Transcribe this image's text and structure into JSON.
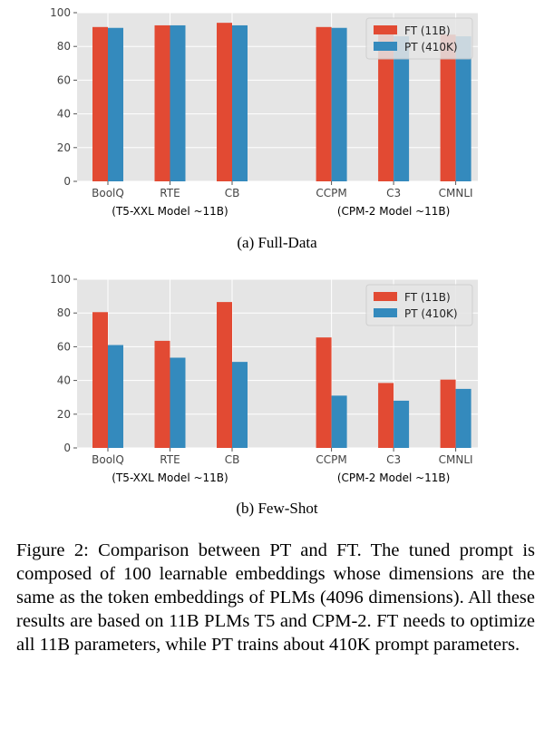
{
  "chart_data": [
    {
      "type": "bar",
      "id": "full-data",
      "caption": "(a) Full-Data",
      "categories": [
        "BoolQ",
        "RTE",
        "CB",
        "CCPM",
        "C3",
        "CMNLI"
      ],
      "groups": [
        {
          "label": "(T5-XXL Model ~11B)",
          "categories": [
            "BoolQ",
            "RTE",
            "CB"
          ]
        },
        {
          "label": "(CPM-2 Model ~11B)",
          "categories": [
            "CCPM",
            "C3",
            "CMNLI"
          ]
        }
      ],
      "series": [
        {
          "name": "FT (11B)",
          "color": "#e24a33",
          "values": [
            91.5,
            92.5,
            94,
            91.5,
            89,
            87
          ]
        },
        {
          "name": "PT (410K)",
          "color": "#348abd",
          "values": [
            91,
            92.5,
            92.5,
            91,
            86,
            86
          ]
        }
      ],
      "yticks": [
        0,
        20,
        40,
        60,
        80,
        100
      ],
      "ylim": [
        0,
        100
      ],
      "grid": true,
      "legend": "top-right"
    },
    {
      "type": "bar",
      "id": "few-shot",
      "caption": "(b) Few-Shot",
      "categories": [
        "BoolQ",
        "RTE",
        "CB",
        "CCPM",
        "C3",
        "CMNLI"
      ],
      "groups": [
        {
          "label": "(T5-XXL Model ~11B)",
          "categories": [
            "BoolQ",
            "RTE",
            "CB"
          ]
        },
        {
          "label": "(CPM-2 Model ~11B)",
          "categories": [
            "CCPM",
            "C3",
            "CMNLI"
          ]
        }
      ],
      "series": [
        {
          "name": "FT (11B)",
          "color": "#e24a33",
          "values": [
            80.5,
            63.5,
            86.5,
            65.5,
            38.5,
            40.5
          ]
        },
        {
          "name": "PT (410K)",
          "color": "#348abd",
          "values": [
            61,
            53.5,
            51,
            31,
            28,
            35
          ]
        }
      ],
      "yticks": [
        0,
        20,
        40,
        60,
        80,
        100
      ],
      "ylim": [
        0,
        100
      ],
      "grid": true,
      "legend": "top-right"
    }
  ],
  "figure_caption": "Figure 2: Comparison between PT and FT. The tuned prompt is composed of 100 learnable embeddings whose dimensions are the same as the token embeddings of PLMs (4096 dimensions). All these results are based on 11B PLMs T5 and CPM-2. FT needs to optimize all 11B parameters, while PT trains about 410K prompt parameters."
}
